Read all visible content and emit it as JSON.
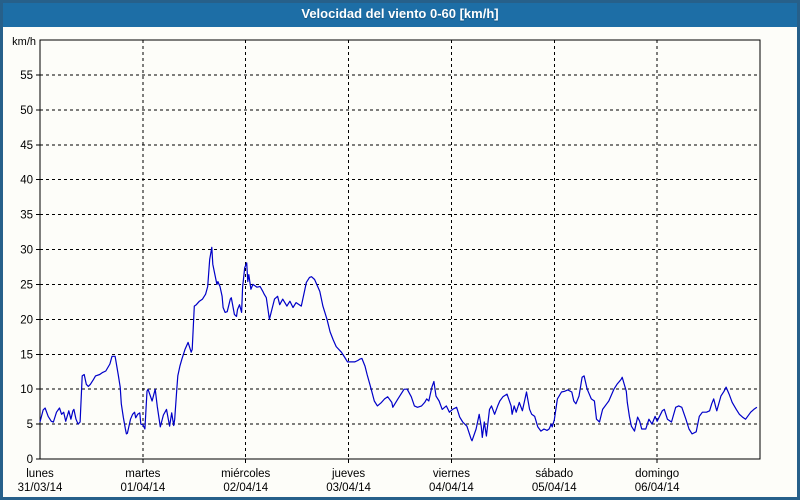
{
  "window": {
    "title": "Velocidad del viento 0-60 [km/h]"
  },
  "colors": {
    "titlebar": "#1d6ea6",
    "frame": "#27608a",
    "background": "#fdfdf9",
    "line": "#0000c8",
    "grid": "#000000",
    "text": "#000000"
  },
  "chart_data": {
    "type": "line",
    "title": "Velocidad del viento 0-60 [km/h]",
    "ylabel": "km/h",
    "xlabel": "",
    "ylim": [
      0,
      60
    ],
    "ytick_step": 5,
    "yticks": [
      0,
      5,
      10,
      15,
      20,
      25,
      30,
      35,
      40,
      45,
      50,
      55
    ],
    "grid": true,
    "legend": "none",
    "x_days": [
      {
        "name": "lunes",
        "date": "31/03/14"
      },
      {
        "name": "martes",
        "date": "01/04/14"
      },
      {
        "name": "miércoles",
        "date": "02/04/14"
      },
      {
        "name": "jueves",
        "date": "03/04/14"
      },
      {
        "name": "viernes",
        "date": "04/04/14"
      },
      {
        "name": "sábado",
        "date": "05/04/14"
      },
      {
        "name": "domingo",
        "date": "06/04/14"
      }
    ],
    "series": [
      {
        "name": "Velocidad del viento",
        "units": "km/h",
        "x_units": "days from 31/03/14 00:00",
        "points": [
          [
            0,
            5.3
          ],
          [
            0.03,
            7
          ],
          [
            0.05,
            7.3
          ],
          [
            0.08,
            6.1
          ],
          [
            0.11,
            5.4
          ],
          [
            0.13,
            5.3
          ],
          [
            0.16,
            6.7
          ],
          [
            0.18,
            7.1
          ],
          [
            0.19,
            7.3
          ],
          [
            0.21,
            6.4
          ],
          [
            0.23,
            6.7
          ],
          [
            0.25,
            5.4
          ],
          [
            0.28,
            6.9
          ],
          [
            0.3,
            5.7
          ],
          [
            0.32,
            6.9
          ],
          [
            0.33,
            7.1
          ],
          [
            0.35,
            5.7
          ],
          [
            0.37,
            5
          ],
          [
            0.39,
            5.3
          ],
          [
            0.41,
            11.9
          ],
          [
            0.43,
            12.1
          ],
          [
            0.45,
            10.7
          ],
          [
            0.47,
            10.4
          ],
          [
            0.49,
            10.7
          ],
          [
            0.52,
            11.4
          ],
          [
            0.54,
            11.9
          ],
          [
            0.58,
            12.1
          ],
          [
            0.61,
            12.4
          ],
          [
            0.64,
            12.6
          ],
          [
            0.68,
            13.6
          ],
          [
            0.7,
            14.7
          ],
          [
            0.73,
            14.7
          ],
          [
            0.76,
            12.1
          ],
          [
            0.78,
            10.3
          ],
          [
            0.79,
            7.9
          ],
          [
            0.81,
            6
          ],
          [
            0.83,
            4.3
          ],
          [
            0.84,
            3.6
          ],
          [
            0.85,
            3.7
          ],
          [
            0.88,
            5.7
          ],
          [
            0.9,
            6.4
          ],
          [
            0.92,
            6.7
          ],
          [
            0.93,
            5.9
          ],
          [
            0.95,
            6.4
          ],
          [
            0.97,
            6.6
          ],
          [
            0.98,
            5
          ],
          [
            1,
            4.9
          ],
          [
            1.02,
            4.3
          ],
          [
            1.04,
            9.7
          ],
          [
            1.05,
            10
          ],
          [
            1.09,
            8.3
          ],
          [
            1.12,
            10
          ],
          [
            1.14,
            7.5
          ],
          [
            1.17,
            4.6
          ],
          [
            1.2,
            6.3
          ],
          [
            1.23,
            7.1
          ],
          [
            1.26,
            4.7
          ],
          [
            1.28,
            6.6
          ],
          [
            1.3,
            4.8
          ],
          [
            1.31,
            5.7
          ],
          [
            1.33,
            10
          ],
          [
            1.34,
            11.9
          ],
          [
            1.36,
            13.3
          ],
          [
            1.38,
            14.3
          ],
          [
            1.41,
            15.7
          ],
          [
            1.44,
            16.7
          ],
          [
            1.47,
            15.3
          ],
          [
            1.48,
            15.7
          ],
          [
            1.5,
            21.9
          ],
          [
            1.52,
            22.1
          ],
          [
            1.55,
            22.6
          ],
          [
            1.58,
            22.9
          ],
          [
            1.61,
            23.6
          ],
          [
            1.63,
            24.7
          ],
          [
            1.65,
            28.6
          ],
          [
            1.67,
            30.3
          ],
          [
            1.68,
            27.9
          ],
          [
            1.7,
            26.4
          ],
          [
            1.72,
            25
          ],
          [
            1.73,
            25.4
          ],
          [
            1.75,
            24.7
          ],
          [
            1.77,
            23.3
          ],
          [
            1.78,
            21.7
          ],
          [
            1.8,
            21
          ],
          [
            1.82,
            21.1
          ],
          [
            1.85,
            22.9
          ],
          [
            1.86,
            23.1
          ],
          [
            1.89,
            20.7
          ],
          [
            1.91,
            20.4
          ],
          [
            1.92,
            21.4
          ],
          [
            1.94,
            22.1
          ],
          [
            1.96,
            21
          ],
          [
            1.97,
            24.6
          ],
          [
            1.99,
            27.4
          ],
          [
            2.01,
            28.1
          ],
          [
            2.02,
            25.4
          ],
          [
            2.03,
            26.4
          ],
          [
            2.05,
            24.3
          ],
          [
            2.07,
            25
          ],
          [
            2.11,
            24.6
          ],
          [
            2.14,
            24.7
          ],
          [
            2.17,
            23.9
          ],
          [
            2.18,
            23.6
          ],
          [
            2.2,
            23.1
          ],
          [
            2.23,
            20
          ],
          [
            2.28,
            22.9
          ],
          [
            2.31,
            23.3
          ],
          [
            2.33,
            22.1
          ],
          [
            2.36,
            22.9
          ],
          [
            2.4,
            21.9
          ],
          [
            2.43,
            22.6
          ],
          [
            2.46,
            21.7
          ],
          [
            2.49,
            22.4
          ],
          [
            2.54,
            21.9
          ],
          [
            2.59,
            25.3
          ],
          [
            2.62,
            26
          ],
          [
            2.64,
            26.1
          ],
          [
            2.67,
            25.7
          ],
          [
            2.72,
            24
          ],
          [
            2.75,
            21.9
          ],
          [
            2.79,
            20
          ],
          [
            2.82,
            18.2
          ],
          [
            2.85,
            17.1
          ],
          [
            2.88,
            16.1
          ],
          [
            2.93,
            15.3
          ],
          [
            2.96,
            14.6
          ],
          [
            2.99,
            13.9
          ],
          [
            3.03,
            13.9
          ],
          [
            3.06,
            13.9
          ],
          [
            3.09,
            14.1
          ],
          [
            3.11,
            14.3
          ],
          [
            3.13,
            14.4
          ],
          [
            3.16,
            13.3
          ],
          [
            3.18,
            12.1
          ],
          [
            3.22,
            10
          ],
          [
            3.25,
            8.3
          ],
          [
            3.28,
            7.6
          ],
          [
            3.32,
            8.1
          ],
          [
            3.35,
            8.6
          ],
          [
            3.38,
            8.9
          ],
          [
            3.42,
            8.1
          ],
          [
            3.43,
            7.4
          ],
          [
            3.48,
            8.6
          ],
          [
            3.51,
            9.3
          ],
          [
            3.54,
            10
          ],
          [
            3.57,
            10
          ],
          [
            3.61,
            8.9
          ],
          [
            3.64,
            7.6
          ],
          [
            3.67,
            7.4
          ],
          [
            3.71,
            7.6
          ],
          [
            3.74,
            8.1
          ],
          [
            3.76,
            8.6
          ],
          [
            3.78,
            8.3
          ],
          [
            3.81,
            10.3
          ],
          [
            3.83,
            11.1
          ],
          [
            3.85,
            9
          ],
          [
            3.88,
            8.3
          ],
          [
            3.91,
            7.1
          ],
          [
            3.95,
            7.6
          ],
          [
            3.98,
            6.7
          ],
          [
            4.01,
            7.1
          ],
          [
            4.05,
            7.4
          ],
          [
            4.08,
            6
          ],
          [
            4.11,
            5.3
          ],
          [
            4.15,
            4.7
          ],
          [
            4.19,
            2.9
          ],
          [
            4.2,
            2.6
          ],
          [
            4.24,
            4.3
          ],
          [
            4.27,
            6.4
          ],
          [
            4.29,
            4.6
          ],
          [
            4.3,
            3.1
          ],
          [
            4.32,
            5.3
          ],
          [
            4.34,
            3.3
          ],
          [
            4.37,
            7.1
          ],
          [
            4.39,
            7.6
          ],
          [
            4.42,
            6.4
          ],
          [
            4.45,
            7.6
          ],
          [
            4.47,
            8.3
          ],
          [
            4.5,
            8.9
          ],
          [
            4.54,
            9.3
          ],
          [
            4.58,
            7.6
          ],
          [
            4.59,
            6.4
          ],
          [
            4.61,
            7.6
          ],
          [
            4.63,
            6.7
          ],
          [
            4.66,
            8.1
          ],
          [
            4.69,
            6.9
          ],
          [
            4.73,
            9.6
          ],
          [
            4.76,
            7.1
          ],
          [
            4.78,
            6.4
          ],
          [
            4.81,
            6.1
          ],
          [
            4.84,
            4.6
          ],
          [
            4.87,
            4
          ],
          [
            4.9,
            4.3
          ],
          [
            4.93,
            4.1
          ],
          [
            4.95,
            4.3
          ],
          [
            4.97,
            5
          ],
          [
            4.98,
            4.6
          ],
          [
            5,
            5.6
          ],
          [
            5.03,
            8.6
          ],
          [
            5.07,
            9.6
          ],
          [
            5.1,
            9.7
          ],
          [
            5.13,
            9.9
          ],
          [
            5.17,
            9.6
          ],
          [
            5.19,
            8.3
          ],
          [
            5.21,
            7.9
          ],
          [
            5.24,
            9
          ],
          [
            5.27,
            11.7
          ],
          [
            5.29,
            11.9
          ],
          [
            5.32,
            10
          ],
          [
            5.36,
            8.6
          ],
          [
            5.39,
            8.3
          ],
          [
            5.41,
            5.7
          ],
          [
            5.44,
            5.3
          ],
          [
            5.47,
            7.1
          ],
          [
            5.51,
            7.9
          ],
          [
            5.53,
            8.3
          ],
          [
            5.58,
            10
          ],
          [
            5.61,
            10.7
          ],
          [
            5.65,
            11.4
          ],
          [
            5.66,
            11.7
          ],
          [
            5.7,
            9.7
          ],
          [
            5.71,
            8.1
          ],
          [
            5.73,
            6.1
          ],
          [
            5.75,
            4.7
          ],
          [
            5.78,
            4
          ],
          [
            5.81,
            6
          ],
          [
            5.83,
            5.4
          ],
          [
            5.85,
            4.3
          ],
          [
            5.89,
            4.3
          ],
          [
            5.92,
            5.7
          ],
          [
            5.95,
            5
          ],
          [
            5.98,
            6.1
          ],
          [
            6,
            5.4
          ],
          [
            6.05,
            6.9
          ],
          [
            6.07,
            7.1
          ],
          [
            6.1,
            5.7
          ],
          [
            6.14,
            5.3
          ],
          [
            6.18,
            7.4
          ],
          [
            6.21,
            7.6
          ],
          [
            6.24,
            7.4
          ],
          [
            6.28,
            5.7
          ],
          [
            6.31,
            4.3
          ],
          [
            6.34,
            3.6
          ],
          [
            6.38,
            3.9
          ],
          [
            6.41,
            6.1
          ],
          [
            6.44,
            6.7
          ],
          [
            6.48,
            6.7
          ],
          [
            6.51,
            6.9
          ],
          [
            6.53,
            7.9
          ],
          [
            6.55,
            8.6
          ],
          [
            6.57,
            7.4
          ],
          [
            6.58,
            6.9
          ],
          [
            6.62,
            9
          ],
          [
            6.65,
            9.7
          ],
          [
            6.67,
            10.3
          ],
          [
            6.7,
            9.3
          ],
          [
            6.73,
            8.1
          ],
          [
            6.77,
            7.1
          ],
          [
            6.8,
            6.4
          ],
          [
            6.83,
            6
          ],
          [
            6.86,
            5.7
          ],
          [
            6.91,
            6.7
          ],
          [
            6.94,
            7.1
          ],
          [
            6.97,
            7.4
          ]
        ]
      }
    ]
  }
}
